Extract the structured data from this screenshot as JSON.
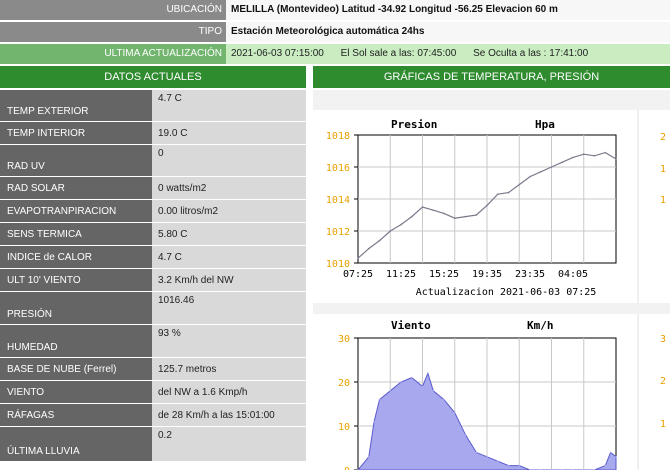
{
  "header": {
    "location_label": "UBICACIÓN",
    "location_value": "MELILLA (Montevideo)  Latitud  -34.92 Longitud -56.25 Elevacion 60 m",
    "type_label": "TIPO",
    "type_value": "Estación Meteorológica automática 24hs",
    "update_label": "ULTIMA ACTUALIZACIÓN",
    "update_datetime": "2021-06-03 07:15:00",
    "sunrise": "El Sol sale a las: 07:45:00",
    "sunset": "Se Oculta a las : 17:41:00"
  },
  "current_title": "DATOS ACTUALES",
  "charts_title": "GRÁFICAS DE TEMPERATURA, PRESIÓN",
  "rows": [
    {
      "label": "TEMP EXTERIOR",
      "value": "4.7 C"
    },
    {
      "label": "TEMP INTERIOR",
      "value": "19.0 C"
    },
    {
      "label": "RAD UV",
      "value": "0"
    },
    {
      "label": "RAD SOLAR",
      "value": "0 watts/m2"
    },
    {
      "label": "EVAPOTRANPIRACION",
      "value": "0.00 litros/m2"
    },
    {
      "label": "SENS TERMICA",
      "value": "5.80 C"
    },
    {
      "label": "INDICE de CALOR",
      "value": "4.7 C"
    },
    {
      "label": "ULT 10' VIENTO",
      "value": "3.2  Km/h del NW"
    },
    {
      "label": "PRESIÓN",
      "value": "1016.46"
    },
    {
      "label": "HUMEDAD",
      "value": "93 %"
    },
    {
      "label": "BASE DE NUBE (Ferrel)",
      "value": " 125.7 metros"
    },
    {
      "label": "VIENTO",
      "value": "del NW a 1.6 Kmp/h"
    },
    {
      "label": "RÁFAGAS",
      "value": "de  28 Km/h a las 15:01:00"
    },
    {
      "label": "ÚLTIMA LLUVIA",
      "value": "0.2"
    }
  ],
  "chart_data": [
    {
      "type": "line",
      "title": "Presion",
      "unit_label": "Hpa",
      "xlabel": "Actualizacion    2021-06-03 07:25",
      "x_tick_labels": [
        "07:25",
        "11:25",
        "15:25",
        "19:35",
        "23:35",
        "04:05"
      ],
      "y_tick_labels": [
        "1010",
        "1012",
        "1014",
        "1016",
        "1018"
      ],
      "ylim": [
        1010,
        1018
      ],
      "grid": true,
      "hours": [
        0,
        1,
        2,
        3,
        4,
        5,
        6,
        7,
        8,
        9,
        10,
        11,
        12,
        13,
        14,
        15,
        16,
        17,
        18,
        19,
        20,
        21,
        22,
        23,
        24
      ],
      "values": [
        1010.3,
        1010.9,
        1011.4,
        1012.0,
        1012.4,
        1012.9,
        1013.5,
        1013.3,
        1013.1,
        1012.8,
        1012.9,
        1013.0,
        1013.6,
        1014.3,
        1014.4,
        1014.9,
        1015.4,
        1015.7,
        1016.0,
        1016.3,
        1016.6,
        1016.8,
        1016.7,
        1016.9,
        1016.5
      ],
      "series_color": "#7a7a8c"
    },
    {
      "type": "area",
      "title": "Viento",
      "unit_label": "Km/h",
      "y_tick_labels": [
        "0",
        "10",
        "20",
        "30"
      ],
      "ylim": [
        0,
        30
      ],
      "grid": true,
      "hours": [
        0,
        1,
        1.5,
        2,
        3,
        4,
        5,
        6,
        6.5,
        7,
        8,
        9,
        10,
        11,
        12,
        13,
        14,
        15,
        16,
        17,
        18,
        19,
        20,
        21,
        22,
        23,
        23.5,
        24
      ],
      "values": [
        0,
        3,
        11,
        16,
        18,
        20,
        21,
        19,
        22,
        18,
        16,
        13,
        8,
        4,
        3,
        2,
        1,
        1,
        0,
        0,
        0,
        0,
        0,
        0,
        0,
        1,
        4,
        3
      ],
      "series_color": "#a8a8ee"
    }
  ],
  "side_tick_labels_top": [
    "2",
    "1",
    "1"
  ],
  "side_tick_labels_bottom": [
    "3",
    "2",
    "1"
  ]
}
